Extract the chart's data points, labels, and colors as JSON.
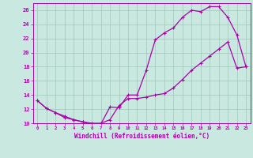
{
  "xlabel": "Windchill (Refroidissement éolien,°C)",
  "background_color": "#c8e8e0",
  "line_color": "#aa00aa",
  "xlim": [
    -0.5,
    23.5
  ],
  "ylim": [
    10,
    27
  ],
  "xticks": [
    0,
    1,
    2,
    3,
    4,
    5,
    6,
    7,
    8,
    9,
    10,
    11,
    12,
    13,
    14,
    15,
    16,
    17,
    18,
    19,
    20,
    21,
    22,
    23
  ],
  "yticks": [
    10,
    12,
    14,
    16,
    18,
    20,
    22,
    24,
    26
  ],
  "line1_x": [
    0,
    1,
    2,
    3,
    4,
    5,
    6,
    7,
    8,
    9,
    10,
    11,
    12,
    13,
    14,
    15,
    16,
    17,
    18,
    19,
    20,
    21,
    22,
    23
  ],
  "line1_y": [
    13.2,
    12.1,
    11.5,
    10.8,
    10.5,
    10.2,
    9.8,
    9.9,
    12.3,
    12.2,
    14.0,
    14.0,
    17.5,
    21.8,
    22.8,
    23.5,
    25.0,
    26.0,
    25.8,
    26.5,
    26.5,
    25.0,
    22.5,
    18.0
  ],
  "line2_x": [
    0,
    1,
    2,
    3,
    4,
    5,
    6,
    7,
    8,
    9,
    10,
    11,
    12,
    13,
    14,
    15,
    16,
    17,
    18,
    19,
    20,
    21,
    22,
    23
  ],
  "line2_y": [
    13.2,
    12.1,
    11.5,
    11.0,
    10.5,
    10.2,
    10.0,
    10.0,
    10.5,
    12.5,
    13.5,
    13.5,
    13.7,
    14.0,
    14.2,
    15.0,
    16.2,
    17.5,
    18.5,
    19.5,
    20.5,
    21.5,
    17.8,
    18.0
  ]
}
